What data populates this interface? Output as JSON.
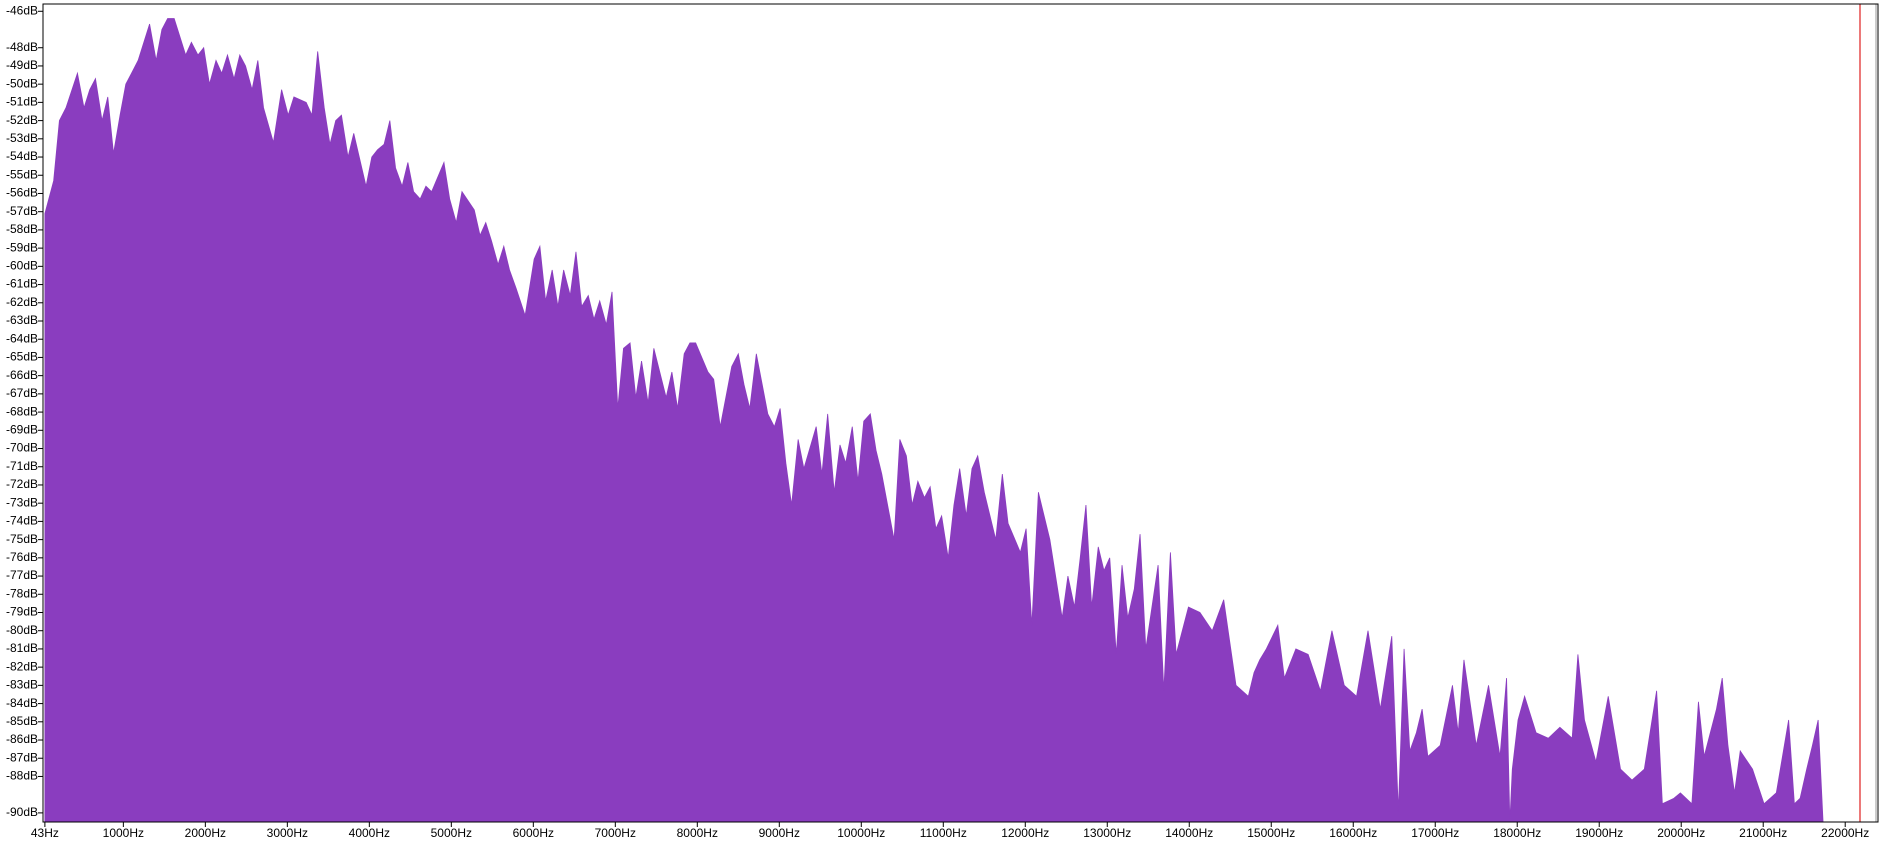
{
  "chart_data": {
    "type": "area",
    "color": "#8a3dbf",
    "xlim": [
      20,
      22400
    ],
    "ylim": [
      -90.5,
      -45.6
    ],
    "xticks": [
      {
        "value": 43,
        "label": "43Hz"
      },
      {
        "value": 1000,
        "label": "1000Hz"
      },
      {
        "value": 2000,
        "label": "2000Hz"
      },
      {
        "value": 3000,
        "label": "3000Hz"
      },
      {
        "value": 4000,
        "label": "4000Hz"
      },
      {
        "value": 5000,
        "label": "5000Hz"
      },
      {
        "value": 6000,
        "label": "6000Hz"
      },
      {
        "value": 7000,
        "label": "7000Hz"
      },
      {
        "value": 8000,
        "label": "8000Hz"
      },
      {
        "value": 9000,
        "label": "9000Hz"
      },
      {
        "value": 10000,
        "label": "10000Hz"
      },
      {
        "value": 11000,
        "label": "11000Hz"
      },
      {
        "value": 12000,
        "label": "12000Hz"
      },
      {
        "value": 13000,
        "label": "13000Hz"
      },
      {
        "value": 14000,
        "label": "14000Hz"
      },
      {
        "value": 15000,
        "label": "15000Hz"
      },
      {
        "value": 16000,
        "label": "16000Hz"
      },
      {
        "value": 17000,
        "label": "17000Hz"
      },
      {
        "value": 18000,
        "label": "18000Hz"
      },
      {
        "value": 19000,
        "label": "19000Hz"
      },
      {
        "value": 20000,
        "label": "20000Hz"
      },
      {
        "value": 21000,
        "label": "21000Hz"
      },
      {
        "value": 22000,
        "label": "22000Hz"
      }
    ],
    "yticks": [
      {
        "value": -46,
        "label": "-46dB"
      },
      {
        "value": -48,
        "label": "-48dB"
      },
      {
        "value": -49,
        "label": "-49dB"
      },
      {
        "value": -50,
        "label": "-50dB"
      },
      {
        "value": -51,
        "label": "-51dB"
      },
      {
        "value": -52,
        "label": "-52dB"
      },
      {
        "value": -53,
        "label": "-53dB"
      },
      {
        "value": -54,
        "label": "-54dB"
      },
      {
        "value": -55,
        "label": "-55dB"
      },
      {
        "value": -56,
        "label": "-56dB"
      },
      {
        "value": -57,
        "label": "-57dB"
      },
      {
        "value": -58,
        "label": "-58dB"
      },
      {
        "value": -59,
        "label": "-59dB"
      },
      {
        "value": -60,
        "label": "-60dB"
      },
      {
        "value": -61,
        "label": "-61dB"
      },
      {
        "value": -62,
        "label": "-62dB"
      },
      {
        "value": -63,
        "label": "-63dB"
      },
      {
        "value": -64,
        "label": "-64dB"
      },
      {
        "value": -65,
        "label": "-65dB"
      },
      {
        "value": -66,
        "label": "-66dB"
      },
      {
        "value": -67,
        "label": "-67dB"
      },
      {
        "value": -68,
        "label": "-68dB"
      },
      {
        "value": -69,
        "label": "-69dB"
      },
      {
        "value": -70,
        "label": "-70dB"
      },
      {
        "value": -71,
        "label": "-71dB"
      },
      {
        "value": -72,
        "label": "-72dB"
      },
      {
        "value": -73,
        "label": "-73dB"
      },
      {
        "value": -74,
        "label": "-74dB"
      },
      {
        "value": -75,
        "label": "-75dB"
      },
      {
        "value": -76,
        "label": "-76dB"
      },
      {
        "value": -77,
        "label": "-77dB"
      },
      {
        "value": -78,
        "label": "-78dB"
      },
      {
        "value": -79,
        "label": "-79dB"
      },
      {
        "value": -80,
        "label": "-80dB"
      },
      {
        "value": -81,
        "label": "-81dB"
      },
      {
        "value": -82,
        "label": "-82dB"
      },
      {
        "value": -83,
        "label": "-83dB"
      },
      {
        "value": -84,
        "label": "-84dB"
      },
      {
        "value": -85,
        "label": "-85dB"
      },
      {
        "value": -86,
        "label": "-86dB"
      },
      {
        "value": -87,
        "label": "-87dB"
      },
      {
        "value": -88,
        "label": "-88dB"
      },
      {
        "value": -90,
        "label": "-90dB"
      }
    ],
    "x": [
      43,
      150,
      220,
      300,
      440,
      520,
      590,
      660,
      740,
      810,
      880,
      960,
      1030,
      1100,
      1180,
      1250,
      1320,
      1400,
      1470,
      1540,
      1620,
      1690,
      1760,
      1830,
      1910,
      1980,
      2050,
      2130,
      2200,
      2270,
      2350,
      2420,
      2490,
      2570,
      2640,
      2710,
      2830,
      2930,
      3010,
      3080,
      3230,
      3300,
      3370,
      3450,
      3520,
      3590,
      3660,
      3740,
      3810,
      3960,
      4030,
      4100,
      4180,
      4250,
      4320,
      4400,
      4470,
      4540,
      4620,
      4690,
      4760,
      4910,
      4980,
      5060,
      5130,
      5280,
      5350,
      5420,
      5490,
      5570,
      5640,
      5710,
      5790,
      5900,
      6010,
      6080,
      6150,
      6230,
      6300,
      6370,
      6450,
      6520,
      6590,
      6670,
      6740,
      6810,
      6890,
      6960,
      7030,
      7100,
      7180,
      7250,
      7320,
      7400,
      7470,
      7620,
      7690,
      7760,
      7840,
      7910,
      7980,
      8130,
      8200,
      8280,
      8420,
      8500,
      8570,
      8640,
      8720,
      8860,
      8940,
      9010,
      9080,
      9150,
      9230,
      9300,
      9450,
      9520,
      9590,
      9670,
      9740,
      9810,
      9890,
      9960,
      10030,
      10110,
      10180,
      10250,
      10400,
      10470,
      10550,
      10620,
      10690,
      10770,
      10840,
      10910,
      10980,
      11060,
      11130,
      11200,
      11280,
      11350,
      11420,
      11500,
      11640,
      11720,
      11790,
      11940,
      12010,
      12080,
      12160,
      12300,
      12450,
      12520,
      12600,
      12670,
      12740,
      12810,
      12890,
      12960,
      13030,
      13110,
      13180,
      13250,
      13330,
      13400,
      13470,
      13620,
      13690,
      13770,
      13840,
      13990,
      14130,
      14280,
      14420,
      14570,
      14720,
      14790,
      14860,
      14940,
      15080,
      15160,
      15300,
      15450,
      15600,
      15740,
      15890,
      16040,
      16180,
      16330,
      16470,
      16550,
      16620,
      16690,
      16770,
      16840,
      16910,
      17060,
      17210,
      17280,
      17350,
      17500,
      17650,
      17790,
      17870,
      17910,
      17940,
      18010,
      18090,
      18230,
      18380,
      18520,
      18670,
      18740,
      18820,
      18960,
      19110,
      19260,
      19400,
      19550,
      19700,
      19770,
      19910,
      19990,
      20130,
      20210,
      20280,
      20430,
      20500,
      20570,
      20650,
      20720,
      20870,
      21010,
      21160,
      21310,
      21380,
      21450,
      21530,
      21600,
      21670,
      21730
    ],
    "values": [
      -57.1,
      -55.3,
      -52.0,
      -51.3,
      -49.4,
      -51.3,
      -50.3,
      -49.7,
      -52.0,
      -50.7,
      -53.8,
      -51.7,
      -50.0,
      -49.4,
      -48.7,
      -47.7,
      -46.7,
      -48.7,
      -47.0,
      -46.4,
      -46.4,
      -47.4,
      -48.4,
      -47.7,
      -48.4,
      -48.0,
      -50.0,
      -48.7,
      -49.4,
      -48.4,
      -49.7,
      -48.4,
      -49.0,
      -50.3,
      -48.7,
      -51.3,
      -53.2,
      -50.3,
      -51.7,
      -50.7,
      -51.0,
      -51.7,
      -48.2,
      -51.3,
      -53.3,
      -52.0,
      -51.7,
      -54.0,
      -52.7,
      -55.6,
      -54.0,
      -53.6,
      -53.3,
      -52.0,
      -54.6,
      -55.6,
      -54.3,
      -55.9,
      -56.3,
      -55.6,
      -55.9,
      -54.3,
      -56.3,
      -57.6,
      -55.9,
      -56.9,
      -58.3,
      -57.6,
      -58.6,
      -59.9,
      -58.9,
      -60.2,
      -61.2,
      -62.7,
      -59.6,
      -58.9,
      -61.9,
      -60.2,
      -62.2,
      -60.2,
      -61.6,
      -59.2,
      -62.2,
      -61.6,
      -62.9,
      -61.9,
      -63.2,
      -61.4,
      -67.8,
      -64.5,
      -64.2,
      -67.2,
      -65.2,
      -67.5,
      -64.5,
      -67.2,
      -65.8,
      -67.8,
      -64.8,
      -64.2,
      -64.2,
      -65.8,
      -66.2,
      -68.8,
      -65.5,
      -64.8,
      -66.5,
      -67.8,
      -64.8,
      -68.1,
      -68.8,
      -67.8,
      -70.8,
      -73.1,
      -69.5,
      -71.1,
      -68.8,
      -71.4,
      -68.1,
      -72.4,
      -69.8,
      -70.8,
      -68.8,
      -71.8,
      -68.5,
      -68.1,
      -70.1,
      -71.4,
      -75.0,
      -69.5,
      -70.4,
      -73.1,
      -71.8,
      -72.7,
      -72.1,
      -74.4,
      -73.7,
      -76.0,
      -73.1,
      -71.1,
      -73.7,
      -71.1,
      -70.4,
      -72.4,
      -75.0,
      -71.4,
      -74.1,
      -75.7,
      -74.4,
      -79.7,
      -72.4,
      -75.0,
      -79.3,
      -77.0,
      -78.7,
      -76.0,
      -73.1,
      -78.7,
      -75.4,
      -76.7,
      -76.0,
      -81.3,
      -76.4,
      -79.3,
      -77.7,
      -74.7,
      -81.0,
      -76.4,
      -83.3,
      -75.7,
      -81.3,
      -78.7,
      -79.0,
      -80.0,
      -78.3,
      -83.0,
      -83.6,
      -82.3,
      -81.6,
      -81.0,
      -79.7,
      -82.6,
      -81.0,
      -81.3,
      -83.3,
      -80.0,
      -83.0,
      -83.6,
      -80.0,
      -84.3,
      -80.3,
      -89.9,
      -81.0,
      -86.6,
      -85.6,
      -84.3,
      -86.9,
      -86.3,
      -83.0,
      -85.6,
      -81.6,
      -86.3,
      -83.0,
      -86.9,
      -82.6,
      -90.5,
      -87.6,
      -84.9,
      -83.6,
      -85.6,
      -85.9,
      -85.3,
      -85.9,
      -81.3,
      -84.9,
      -87.2,
      -83.6,
      -87.6,
      -88.2,
      -87.6,
      -83.3,
      -89.5,
      -89.2,
      -88.9,
      -89.5,
      -83.9,
      -86.9,
      -84.3,
      -82.6,
      -86.3,
      -88.9,
      -86.6,
      -87.6,
      -89.5,
      -88.9,
      -84.9,
      -89.5,
      -89.2,
      -87.6,
      -86.3,
      -84.9,
      -90.5
    ]
  }
}
